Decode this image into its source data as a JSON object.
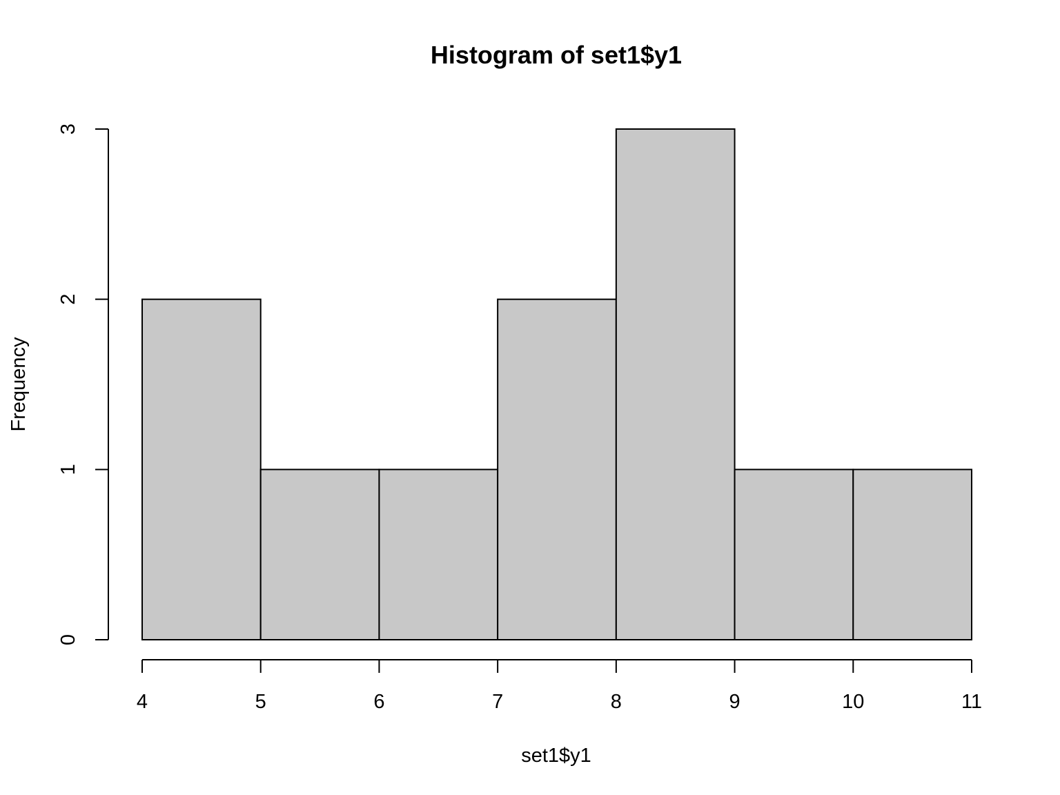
{
  "chart_data": {
    "type": "bar",
    "subtype": "histogram",
    "title": "Histogram of set1$y1",
    "xlabel": "set1$y1",
    "ylabel": "Frequency",
    "bins": [
      {
        "from": 4,
        "to": 5,
        "count": 2
      },
      {
        "from": 5,
        "to": 6,
        "count": 1
      },
      {
        "from": 6,
        "to": 7,
        "count": 1
      },
      {
        "from": 7,
        "to": 8,
        "count": 2
      },
      {
        "from": 8,
        "to": 9,
        "count": 3
      },
      {
        "from": 9,
        "to": 10,
        "count": 1
      },
      {
        "from": 10,
        "to": 11,
        "count": 1
      }
    ],
    "xlim": [
      4,
      11
    ],
    "ylim": [
      0,
      3
    ],
    "x_ticks": [
      4,
      5,
      6,
      7,
      8,
      9,
      10,
      11
    ],
    "y_ticks": [
      0,
      1,
      2,
      3
    ],
    "bar_color": "#c8c8c8",
    "border_color": "#000000",
    "grid": false,
    "legend": "none"
  }
}
